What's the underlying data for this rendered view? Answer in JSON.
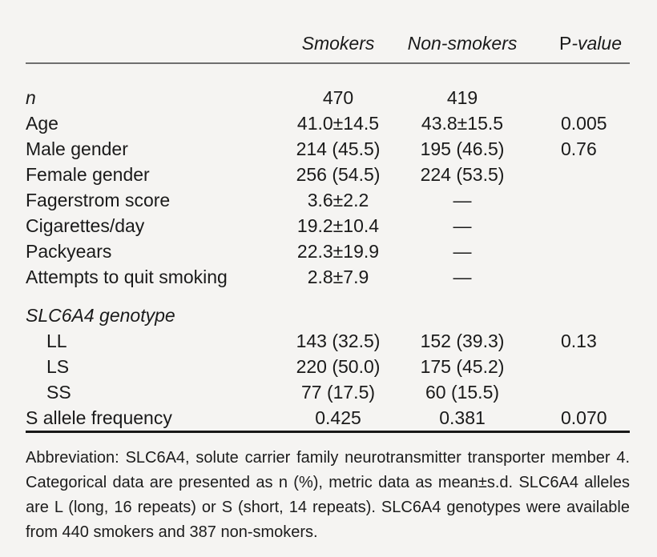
{
  "colors": {
    "background": "#f5f4f2",
    "text": "#1a1a1a",
    "rule_top": "#6f6f6f",
    "rule_bottom": "#181818"
  },
  "table": {
    "columns": {
      "label": "",
      "smokers": "Smokers",
      "nonsmokers": "Non-smokers",
      "p_roman": "P",
      "p_italic": "-value"
    },
    "rows": [
      {
        "label": "n",
        "italic": true,
        "smokers": "470",
        "nonsmokers": "419",
        "p": ""
      },
      {
        "label": "Age",
        "smokers": "41.0±14.5",
        "nonsmokers": "43.8±15.5",
        "p": "0.005"
      },
      {
        "label": "Male gender",
        "smokers": "214 (45.5)",
        "nonsmokers": "195 (46.5)",
        "p": "0.76"
      },
      {
        "label": "Female gender",
        "smokers": "256 (54.5)",
        "nonsmokers": "224 (53.5)",
        "p": ""
      },
      {
        "label": "Fagerstrom score",
        "smokers": "3.6±2.2",
        "nonsmokers": "—",
        "p": ""
      },
      {
        "label": "Cigarettes/day",
        "smokers": "19.2±10.4",
        "nonsmokers": "—",
        "p": ""
      },
      {
        "label": "Packyears",
        "smokers": "22.3±19.9",
        "nonsmokers": "—",
        "p": ""
      },
      {
        "label": "Attempts to quit smoking",
        "smokers": "2.8±7.9",
        "nonsmokers": "—",
        "p": ""
      },
      {
        "label": "SLC6A4 genotype",
        "italic": true,
        "gap_before": true,
        "smokers": "",
        "nonsmokers": "",
        "p": ""
      },
      {
        "label": "LL",
        "indent": true,
        "smokers": "143 (32.5)",
        "nonsmokers": "152 (39.3)",
        "p": "0.13"
      },
      {
        "label": "LS",
        "indent": true,
        "smokers": "220 (50.0)",
        "nonsmokers": "175 (45.2)",
        "p": ""
      },
      {
        "label": "SS",
        "indent": true,
        "smokers": "77 (17.5)",
        "nonsmokers": "60 (15.5)",
        "p": ""
      },
      {
        "label": "S allele frequency",
        "smokers": "0.425",
        "nonsmokers": "0.381",
        "p": "0.070"
      }
    ]
  },
  "footnote": {
    "lines": [
      "Abbreviation: SLC6A4, solute carrier family neurotransmitter transporter member 4.",
      "Categorical data are presented as n (%), metric data as mean±s.d. SLC6A4 alleles",
      "are L (long, 16 repeats) or S (short, 14 repeats). SLC6A4 genotypes were available",
      "from 440 smokers and 387 non-smokers."
    ]
  }
}
